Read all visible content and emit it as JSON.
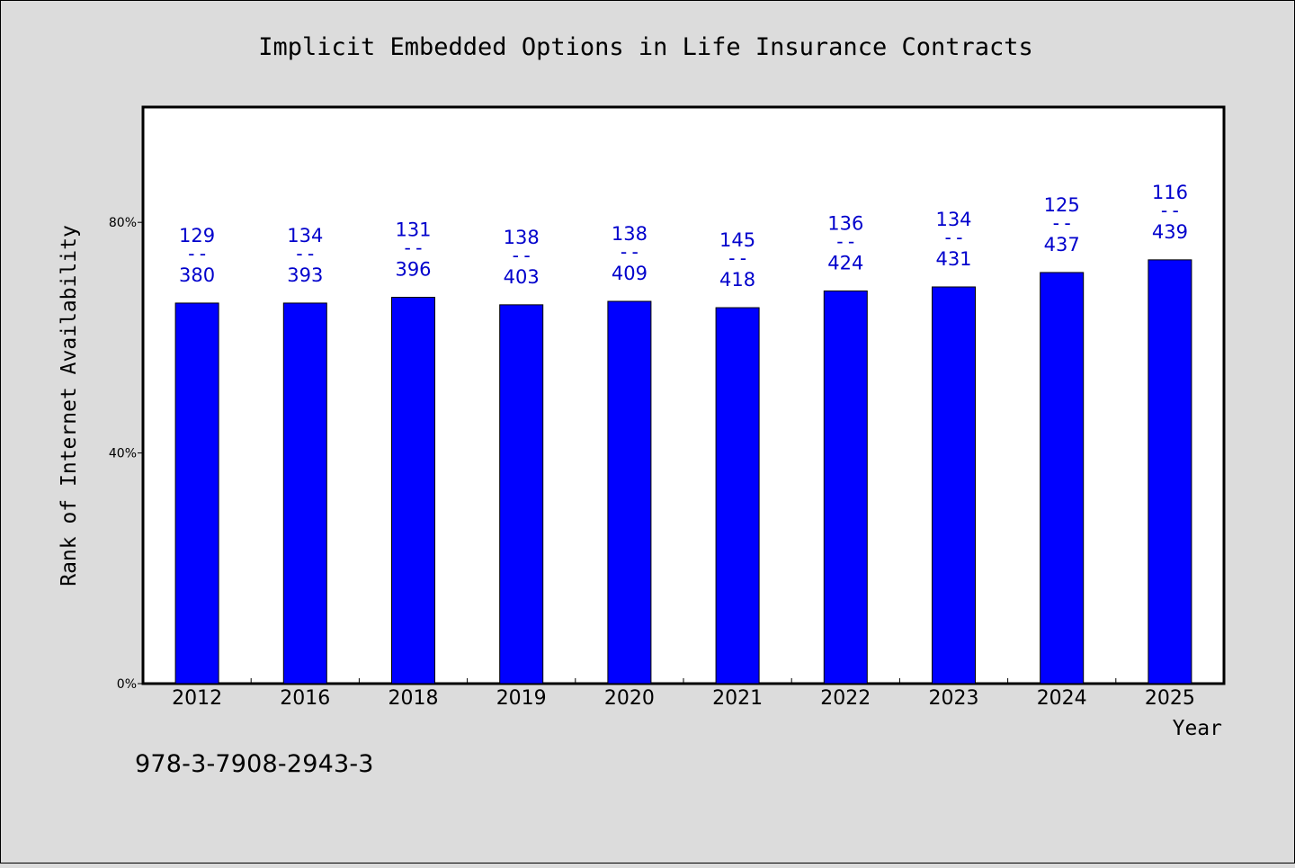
{
  "chart_data": {
    "type": "bar",
    "title": "Implicit Embedded Options in Life Insurance Contracts",
    "xlabel": "Year",
    "ylabel": "Rank of Internet Availability",
    "categories": [
      "2012",
      "2016",
      "2018",
      "2019",
      "2020",
      "2021",
      "2022",
      "2023",
      "2024",
      "2025"
    ],
    "values": [
      66,
      66,
      67,
      65.7,
      66.3,
      65.2,
      68.1,
      68.8,
      71.3,
      73.5
    ],
    "ylim": [
      0,
      100
    ],
    "yticks": [
      0,
      40,
      80
    ],
    "ytick_labels": [
      "0%",
      "40%",
      "80%"
    ],
    "bar_labels": [
      {
        "top": "129",
        "sep": "--",
        "bottom": "380"
      },
      {
        "top": "134",
        "sep": "--",
        "bottom": "393"
      },
      {
        "top": "131",
        "sep": "--",
        "bottom": "396"
      },
      {
        "top": "138",
        "sep": "--",
        "bottom": "403"
      },
      {
        "top": "138",
        "sep": "--",
        "bottom": "409"
      },
      {
        "top": "145",
        "sep": "--",
        "bottom": "418"
      },
      {
        "top": "136",
        "sep": "--",
        "bottom": "424"
      },
      {
        "top": "134",
        "sep": "--",
        "bottom": "431"
      },
      {
        "top": "125",
        "sep": "--",
        "bottom": "437"
      },
      {
        "top": "116",
        "sep": "--",
        "bottom": "439"
      }
    ],
    "grid": false,
    "legend": "none",
    "colors": {
      "bar": "#0000ff",
      "bar_label": "#0000cc",
      "page_background": "#dcdcdc",
      "plot_background": "#ffffff"
    }
  },
  "footer": {
    "isbn": "978-3-7908-2943-3"
  }
}
